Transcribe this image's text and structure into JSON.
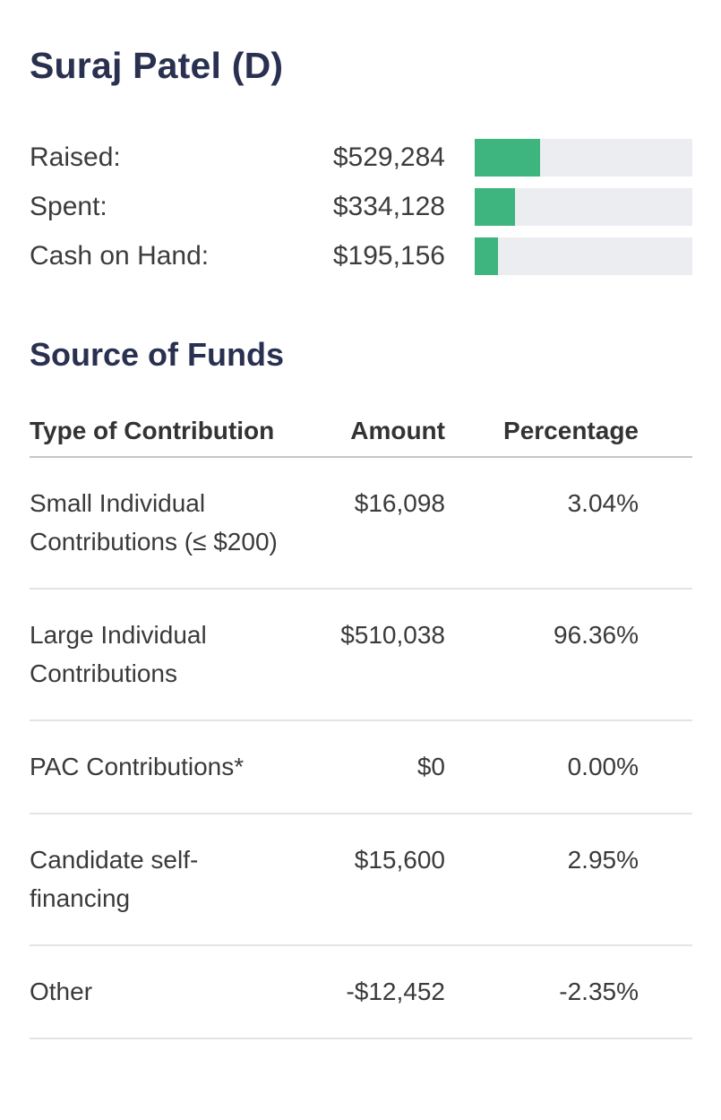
{
  "header": {
    "candidate_name": "Suraj Patel (D)"
  },
  "colors": {
    "heading_navy": "#2a3150",
    "bar_fill_green": "#3eb47f",
    "bar_track_gray": "#ebedf0",
    "body_text": "#3a3a3a",
    "header_rule": "#c6c6c6",
    "row_divider": "#e4e4e4"
  },
  "fundraising": {
    "rows": [
      {
        "label": "Raised:",
        "value": "$529,284",
        "bar_pct": 30.2
      },
      {
        "label": "Spent:",
        "value": "$334,128",
        "bar_pct": 18.7
      },
      {
        "label": "Cash on Hand:",
        "value": "$195,156",
        "bar_pct": 10.6
      }
    ]
  },
  "source_of_funds": {
    "title": "Source of Funds",
    "columns": [
      "Type of Contribution",
      "Amount",
      "Percentage"
    ],
    "rows": [
      {
        "type": "Small Individual Contributions (≤ $200)",
        "amount": "$16,098",
        "percentage": "3.04%"
      },
      {
        "type": "Large Individual Contributions",
        "amount": "$510,038",
        "percentage": "96.36%"
      },
      {
        "type": "PAC Contributions*",
        "amount": "$0",
        "percentage": "0.00%"
      },
      {
        "type": "Candidate self-financing",
        "amount": "$15,600",
        "percentage": "2.95%"
      },
      {
        "type": "Other",
        "amount": "-$12,452",
        "percentage": "-2.35%"
      }
    ]
  },
  "chart_data": [
    {
      "type": "bar",
      "title": "Suraj Patel (D) fundraising totals",
      "categories": [
        "Raised",
        "Spent",
        "Cash on Hand"
      ],
      "values": [
        529284,
        334128,
        195156
      ],
      "value_labels": [
        "$529,284",
        "$334,128",
        "$195,156"
      ],
      "bar_fill_fraction_of_track": [
        0.302,
        0.187,
        0.106
      ],
      "orientation": "horizontal",
      "grid": false,
      "legend": false
    },
    {
      "type": "table",
      "title": "Source of Funds",
      "columns": [
        "Type of Contribution",
        "Amount",
        "Percentage"
      ],
      "rows": [
        [
          "Small Individual Contributions (≤ $200)",
          16098,
          3.04
        ],
        [
          "Large Individual Contributions",
          510038,
          96.36
        ],
        [
          "PAC Contributions*",
          0,
          0.0
        ],
        [
          "Candidate self-financing",
          15600,
          2.95
        ],
        [
          "Other",
          -12452,
          -2.35
        ]
      ]
    }
  ]
}
